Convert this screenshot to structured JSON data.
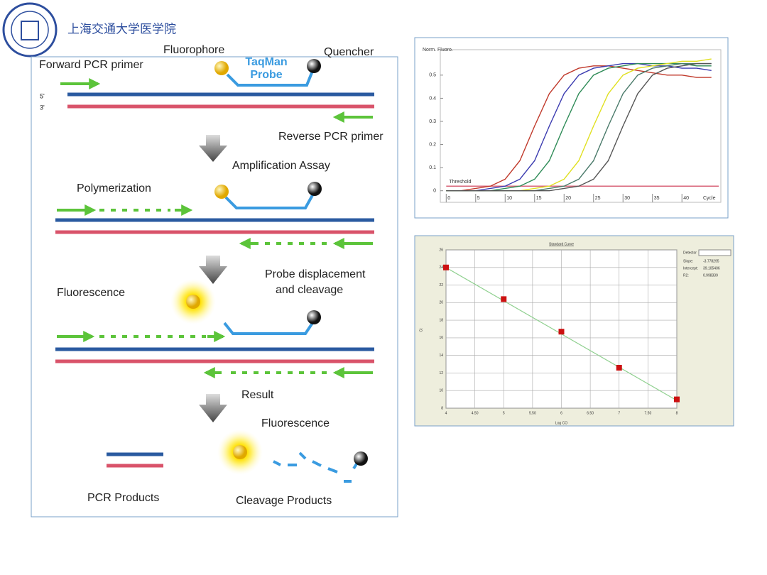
{
  "header": {
    "title": "上海交通大学医学院"
  },
  "diagram": {
    "forward_primer": "Forward PCR primer",
    "fluorophore": "Fluorophore",
    "probe_name": [
      "TaqMan",
      "Probe"
    ],
    "quencher": "Quencher",
    "five_prime": "5'",
    "three_prime": "3'",
    "reverse_primer": "Reverse PCR primer",
    "step1": "Amplification Assay",
    "polymerization": "Polymerization",
    "step2": [
      "Probe displacement",
      "and cleavage"
    ],
    "fluorescence1": "Fluorescence",
    "step3": "Result",
    "fluorescence2": "Fluorescence",
    "pcr_products": "PCR Products",
    "cleavage_products": "Cleavage Products"
  },
  "chart_data": [
    {
      "type": "line",
      "ylabel": "Norm. Fluoro.",
      "xlabel": "Cycle",
      "threshold_label": "Threshold",
      "threshold": 0.02,
      "threshold_color": "#d9667a",
      "x": [
        0,
        2.5,
        5,
        7.5,
        10,
        12.5,
        15,
        17.5,
        20,
        22.5,
        25,
        27.5,
        30,
        32.5,
        35,
        37.5,
        40,
        42.5,
        45
      ],
      "series": [
        {
          "color": "#c0392b",
          "values": [
            0,
            0,
            0.01,
            0.02,
            0.05,
            0.13,
            0.28,
            0.42,
            0.5,
            0.53,
            0.54,
            0.54,
            0.53,
            0.52,
            0.51,
            0.5,
            0.5,
            0.49,
            0.49
          ]
        },
        {
          "color": "#3b3bb0",
          "values": [
            0,
            0,
            0,
            0.01,
            0.02,
            0.05,
            0.13,
            0.28,
            0.42,
            0.5,
            0.53,
            0.54,
            0.55,
            0.55,
            0.54,
            0.54,
            0.53,
            0.53,
            0.52
          ]
        },
        {
          "color": "#2e8b57",
          "values": [
            0,
            0,
            0,
            0,
            0.01,
            0.02,
            0.05,
            0.13,
            0.28,
            0.42,
            0.5,
            0.53,
            0.54,
            0.55,
            0.55,
            0.55,
            0.55,
            0.54,
            0.54
          ]
        },
        {
          "color": "#e0e020",
          "values": [
            0,
            0,
            0,
            0,
            0,
            0,
            0.01,
            0.02,
            0.05,
            0.13,
            0.28,
            0.42,
            0.5,
            0.53,
            0.54,
            0.55,
            0.56,
            0.56,
            0.57
          ]
        },
        {
          "color": "#4a7a6a",
          "values": [
            0,
            0,
            0,
            0,
            0,
            0,
            0,
            0.01,
            0.02,
            0.05,
            0.13,
            0.28,
            0.42,
            0.5,
            0.53,
            0.54,
            0.55,
            0.55,
            0.55
          ]
        },
        {
          "color": "#555555",
          "values": [
            0,
            0,
            0,
            0,
            0,
            0,
            0,
            0,
            0.01,
            0.02,
            0.05,
            0.13,
            0.28,
            0.42,
            0.5,
            0.53,
            0.54,
            0.55,
            0.55
          ]
        }
      ],
      "xlim": [
        -1,
        46.6
      ],
      "ylim": [
        -0.05,
        0.61
      ],
      "xticks": [
        0,
        5,
        10,
        15,
        20,
        25,
        30,
        35,
        40
      ],
      "yticks": [
        0,
        0.1,
        0.2,
        0.3,
        0.4,
        0.5
      ]
    },
    {
      "type": "scatter",
      "title": "Standard Curve",
      "xlabel": "Log CO",
      "ylabel": "Ct",
      "color": "#cc1111",
      "line_color": "#8fd08f",
      "x": [
        4,
        5,
        6,
        7,
        8
      ],
      "values": [
        24,
        20.4,
        16.7,
        12.6,
        9
      ],
      "xlim": [
        4,
        8
      ],
      "ylim": [
        8,
        26
      ],
      "xticks": [
        4,
        {
          "value": 4.5,
          "label": "4.50"
        },
        5,
        {
          "value": 5.5,
          "label": "5.50"
        },
        6,
        {
          "value": 6.5,
          "label": "6.50"
        },
        7,
        {
          "value": 7.5,
          "label": "7.50"
        },
        8
      ],
      "yticks": [
        8,
        10,
        12,
        14,
        16,
        18,
        20,
        22,
        24,
        26
      ],
      "grid": true,
      "detector_label": "Detector",
      "stats": [
        {
          "label": "Slope:",
          "value": -3.778295
        },
        {
          "label": "Intercept:",
          "value": 39.105406
        },
        {
          "label": "R2:",
          "value": 0.998339
        }
      ]
    }
  ]
}
